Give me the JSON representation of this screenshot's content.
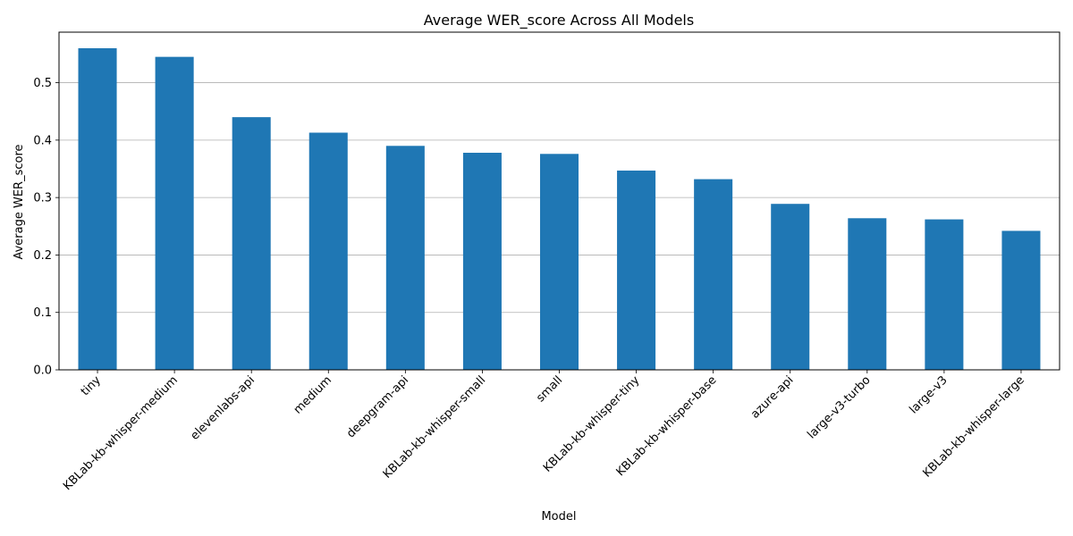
{
  "chart_data": {
    "type": "bar",
    "title": "Average WER_score Across All Models",
    "xlabel": "Model",
    "ylabel": "Average WER_score",
    "categories": [
      "tiny",
      "KBLab-kb-whisper-medium",
      "elevenlabs-api",
      "medium",
      "deepgram-api",
      "KBLab-kb-whisper-small",
      "small",
      "KBLab-kb-whisper-tiny",
      "KBLab-kb-whisper-base",
      "azure-api",
      "large-v3-turbo",
      "large-v3",
      "KBLab-kb-whisper-large"
    ],
    "values": [
      0.56,
      0.545,
      0.44,
      0.413,
      0.39,
      0.378,
      0.376,
      0.347,
      0.332,
      0.289,
      0.264,
      0.262,
      0.242
    ],
    "ylim": [
      0,
      0.588
    ],
    "yticks": [
      0.0,
      0.1,
      0.2,
      0.3,
      0.4,
      0.5
    ],
    "ytick_labels": [
      "0.0",
      "0.1",
      "0.2",
      "0.3",
      "0.4",
      "0.5"
    ],
    "grid": "y-major",
    "legend": "none",
    "bar_color": "#1f77b4",
    "grid_color": "#b0b0b0"
  }
}
